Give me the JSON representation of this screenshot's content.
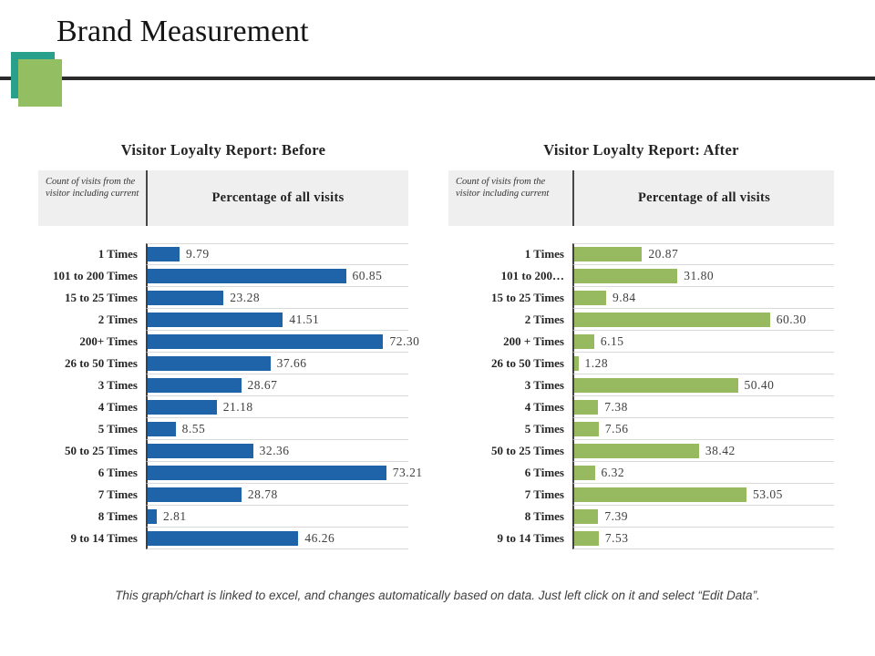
{
  "slide": {
    "title": "Brand Measurement",
    "footer": "This graph/chart is linked to excel, and changes automatically based on data. Just left click on it and select “Edit Data”."
  },
  "colors": {
    "before_bar": "#1f63a8",
    "after_bar": "#97ba60",
    "teal_square": "#28a08c",
    "green_square": "#93bf62",
    "rule_line": "#2b2b2b"
  },
  "chart_data": [
    {
      "type": "bar",
      "orientation": "horizontal",
      "title": "Visitor Loyalty Report: Before",
      "column_headers": {
        "category": "Count of visits from the visitor including current",
        "value": "Percentage of all visits"
      },
      "xlim": [
        0,
        80
      ],
      "grid": "light row separators, dark category axis",
      "legend": "none",
      "bar_color": "#1f63a8",
      "categories": [
        "1 Times",
        "101 to 200 Times",
        "15 to 25 Times",
        "2 Times",
        "200+ Times",
        "26 to 50 Times",
        "3 Times",
        "4 Times",
        "5 Times",
        "50 to 25 Times",
        "6 Times",
        "7 Times",
        "8 Times",
        "9 to 14 Times"
      ],
      "values": [
        9.79,
        60.85,
        23.28,
        41.51,
        72.3,
        37.66,
        28.67,
        21.18,
        8.55,
        32.36,
        73.21,
        28.78,
        2.81,
        46.26
      ],
      "value_labels": [
        "9.79",
        "60.85",
        "23.28",
        "41.51",
        "72.30",
        "37.66",
        "28.67",
        "21.18",
        "8.55",
        "32.36",
        "73.21",
        "28.78",
        "2.81",
        "46.26"
      ]
    },
    {
      "type": "bar",
      "orientation": "horizontal",
      "title": "Visitor Loyalty Report: After",
      "column_headers": {
        "category": "Count of visits from the visitor including current",
        "value": "Percentage of all visits"
      },
      "xlim": [
        0,
        80
      ],
      "grid": "light row separators, dark category axis",
      "legend": "none",
      "bar_color": "#97ba60",
      "categories": [
        "1 Times",
        "101 to 200…",
        "15 to 25 Times",
        "2 Times",
        "200 + Times",
        "26 to 50 Times",
        "3 Times",
        "4 Times",
        "5 Times",
        "50 to 25 Times",
        "6 Times",
        "7 Times",
        "8 Times",
        "9 to 14 Times"
      ],
      "values": [
        20.87,
        31.8,
        9.84,
        60.3,
        6.15,
        1.28,
        50.4,
        7.38,
        7.56,
        38.42,
        6.32,
        53.05,
        7.39,
        7.53
      ],
      "value_labels": [
        "20.87",
        "31.80",
        "9.84",
        "60.30",
        "6.15",
        "1.28",
        "50.40",
        "7.38",
        "7.56",
        "38.42",
        "6.32",
        "53.05",
        "7.39",
        "7.53"
      ]
    }
  ]
}
